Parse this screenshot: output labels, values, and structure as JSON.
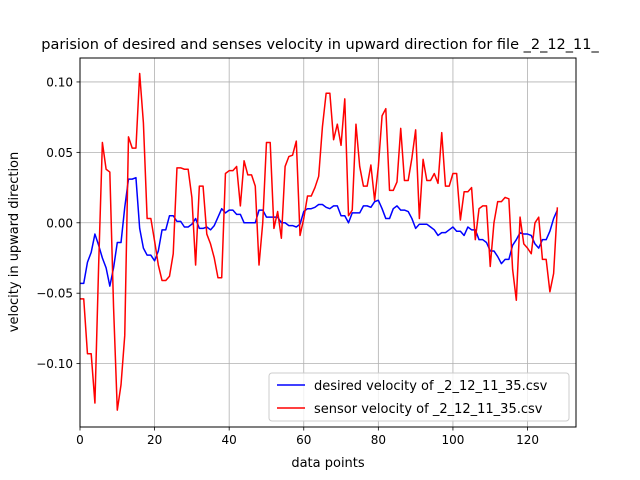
{
  "chart_data": {
    "type": "line",
    "title": "parision of desired and senses velocity in upward direction for file _2_12_11_",
    "xlabel": "data points",
    "ylabel": "velocity in upward direction",
    "xlim": [
      0,
      133
    ],
    "ylim": [
      -0.145,
      0.117
    ],
    "xticks": [
      0,
      20,
      40,
      60,
      80,
      100,
      120
    ],
    "xtick_labels": [
      "0",
      "20",
      "40",
      "60",
      "80",
      "100",
      "120"
    ],
    "yticks": [
      -0.1,
      -0.05,
      0.0,
      0.05,
      0.1
    ],
    "ytick_labels": [
      "−0.10",
      "−0.05",
      "0.00",
      "0.05",
      "0.10"
    ],
    "grid": true,
    "legend_position": "lower-right",
    "series": [
      {
        "name": "desired velocity of _2_12_11_35.csv",
        "color": "#0000ff",
        "values": [
          -0.043,
          -0.043,
          -0.028,
          -0.021,
          -0.008,
          -0.016,
          -0.025,
          -0.032,
          -0.045,
          -0.032,
          -0.014,
          -0.014,
          0.011,
          0.031,
          0.031,
          0.032,
          -0.004,
          -0.018,
          -0.023,
          -0.023,
          -0.027,
          -0.02,
          -0.005,
          -0.005,
          0.005,
          0.005,
          0.001,
          0.001,
          -0.003,
          -0.003,
          -0.001,
          0.003,
          -0.004,
          -0.004,
          -0.003,
          -0.005,
          -0.002,
          0.004,
          0.01,
          0.007,
          0.009,
          0.009,
          0.006,
          0.006,
          0.0,
          0.0,
          0.0,
          0.0,
          0.009,
          0.009,
          0.004,
          0.004,
          0.004,
          0.004,
          0.0,
          0.0,
          -0.002,
          -0.002,
          -0.003,
          -0.001,
          0.008,
          0.01,
          0.01,
          0.011,
          0.013,
          0.013,
          0.011,
          0.01,
          0.012,
          0.012,
          0.005,
          0.005,
          0.0,
          0.007,
          0.007,
          0.007,
          0.012,
          0.012,
          0.011,
          0.015,
          0.016,
          0.01,
          0.003,
          0.003,
          0.01,
          0.012,
          0.009,
          0.009,
          0.008,
          0.003,
          -0.004,
          -0.001,
          -0.001,
          -0.001,
          -0.003,
          -0.005,
          -0.009,
          -0.007,
          -0.007,
          -0.005,
          -0.003,
          -0.006,
          -0.006,
          -0.009,
          -0.003,
          -0.005,
          -0.005,
          -0.012,
          -0.012,
          -0.014,
          -0.02,
          -0.02,
          -0.024,
          -0.029,
          -0.026,
          -0.026,
          -0.016,
          -0.012,
          -0.007,
          -0.008,
          -0.008,
          -0.009,
          -0.015,
          -0.018,
          -0.012,
          -0.012,
          -0.006,
          0.003,
          0.009
        ]
      },
      {
        "name": "sensor velocity of _2_12_11_35.csv",
        "color": "#ff0000",
        "values": [
          -0.054,
          -0.054,
          -0.093,
          -0.093,
          -0.128,
          -0.03,
          0.057,
          0.038,
          0.036,
          -0.06,
          -0.133,
          -0.115,
          -0.08,
          0.061,
          0.053,
          0.053,
          0.106,
          0.071,
          0.003,
          0.003,
          -0.013,
          -0.03,
          -0.041,
          -0.041,
          -0.038,
          -0.022,
          0.039,
          0.039,
          0.038,
          0.038,
          0.018,
          -0.03,
          0.026,
          0.026,
          -0.008,
          -0.015,
          -0.025,
          -0.039,
          -0.039,
          0.035,
          0.037,
          0.037,
          0.04,
          0.012,
          0.044,
          0.034,
          0.034,
          0.026,
          -0.03,
          0.0,
          0.057,
          0.057,
          -0.004,
          0.008,
          -0.011,
          0.04,
          0.047,
          0.048,
          0.058,
          -0.009,
          0.003,
          0.019,
          0.019,
          0.025,
          0.033,
          0.068,
          0.092,
          0.092,
          0.059,
          0.07,
          0.055,
          0.088,
          0.005,
          0.009,
          0.07,
          0.04,
          0.026,
          0.026,
          0.041,
          0.016,
          0.04,
          0.076,
          0.081,
          0.023,
          0.023,
          0.029,
          0.067,
          0.03,
          0.03,
          0.046,
          0.066,
          0.003,
          0.045,
          0.03,
          0.03,
          0.035,
          0.028,
          0.064,
          0.026,
          0.026,
          0.035,
          0.035,
          0.002,
          0.022,
          0.022,
          0.025,
          -0.012,
          0.01,
          0.012,
          0.012,
          -0.031,
          0.0,
          0.015,
          0.015,
          0.018,
          0.017,
          -0.033,
          -0.055,
          0.004,
          -0.015,
          -0.018,
          -0.022,
          0.0,
          0.004,
          -0.026,
          -0.026,
          -0.049,
          -0.036,
          0.011
        ]
      }
    ]
  }
}
